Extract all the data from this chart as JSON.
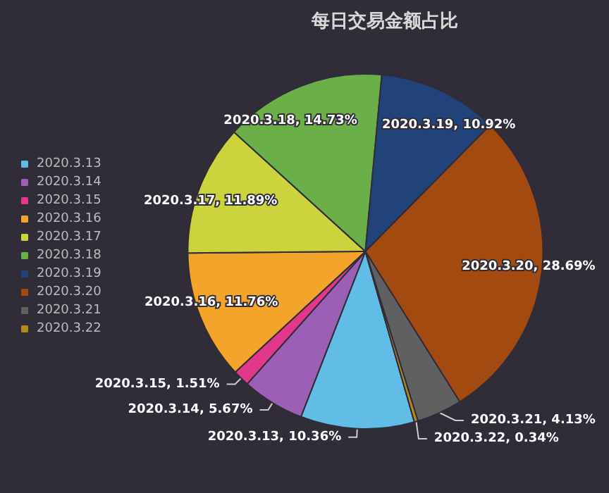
{
  "chart_data": {
    "type": "pie",
    "title": "每日交易金额占比",
    "categories": [
      "2020.3.13",
      "2020.3.14",
      "2020.3.15",
      "2020.3.16",
      "2020.3.17",
      "2020.3.18",
      "2020.3.19",
      "2020.3.20",
      "2020.3.21",
      "2020.3.22"
    ],
    "values": [
      10.36,
      5.67,
      1.51,
      11.76,
      11.89,
      14.73,
      10.92,
      28.69,
      4.13,
      0.34
    ],
    "value_labels": [
      "2020.3.13, 10.36%",
      "2020.3.14, 5.67%",
      "2020.3.15, 1.51%",
      "2020.3.16, 11.76%",
      "2020.3.17, 11.89%",
      "2020.3.18, 14.73%",
      "2020.3.19, 10.92%",
      "2020.3.20, 28.69%",
      "2020.3.21, 4.13%",
      "2020.3.22, 0.34%"
    ],
    "colors": [
      "#62bde6",
      "#9b5fb5",
      "#e2388a",
      "#f4a42a",
      "#cbd43c",
      "#6aaf48",
      "#22427a",
      "#a34a10",
      "#606060",
      "#b08a1a"
    ],
    "legend": "left"
  }
}
